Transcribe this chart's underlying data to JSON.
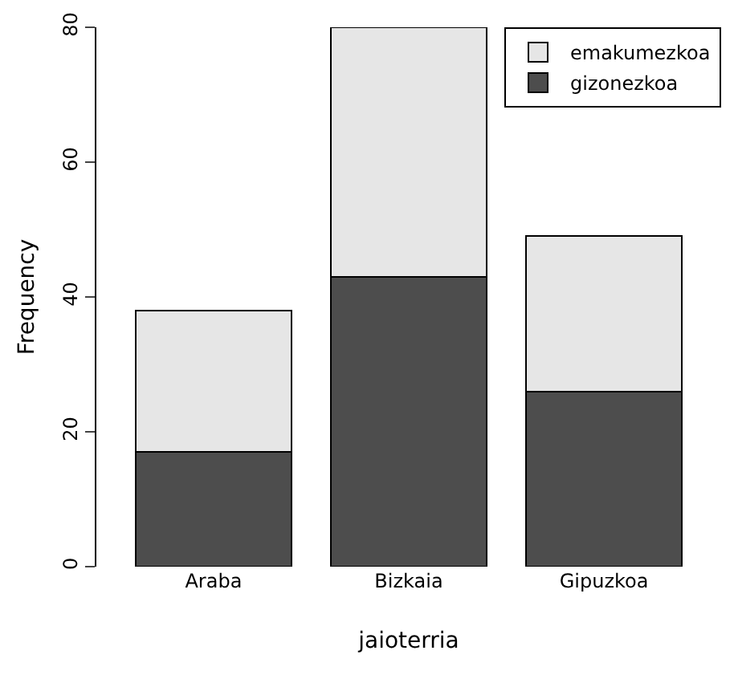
{
  "chart_data": {
    "type": "bar",
    "stacked": true,
    "xlabel": "jaioterria",
    "ylabel": "Frequency",
    "categories": [
      "Araba",
      "Bizkaia",
      "Gipuzkoa"
    ],
    "series": [
      {
        "name": "gizonezkoa",
        "color": "#4d4d4d",
        "values": [
          17,
          43,
          26
        ]
      },
      {
        "name": "emakumezkoa",
        "color": "#e6e6e6",
        "values": [
          21,
          37,
          23
        ]
      }
    ],
    "ylim": [
      0,
      80
    ],
    "yticks": [
      0,
      20,
      40,
      60,
      80
    ],
    "grid": false,
    "legend": "top right"
  }
}
